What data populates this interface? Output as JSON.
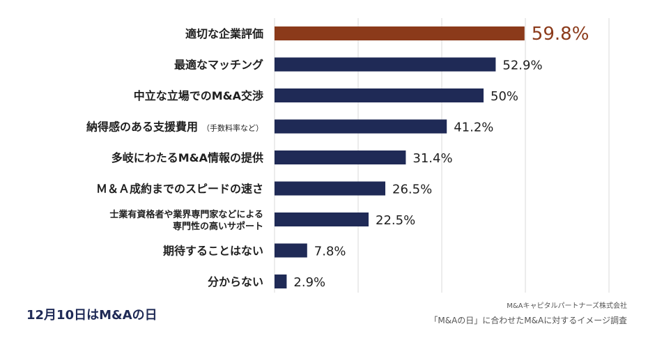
{
  "chart_data": {
    "type": "bar",
    "orientation": "horizontal",
    "categories": [
      [
        "適切な企業評価"
      ],
      [
        "最適なマッチング"
      ],
      [
        "中立な立場でのM&A交渉"
      ],
      [
        "納得感のある支援費用",
        "（手数料率など）"
      ],
      [
        "多岐にわたるM&A情報の提供"
      ],
      [
        "Ｍ＆Ａ成約までのスピードの速さ"
      ],
      [
        "士業有資格者や業界専門家などによる",
        "専門性の高いサポート"
      ],
      [
        "期待することはない"
      ],
      [
        "分からない"
      ]
    ],
    "values": [
      59.8,
      52.9,
      50,
      41.2,
      31.4,
      26.5,
      22.5,
      7.8,
      2.9
    ],
    "value_labels": [
      "59.8%",
      "52.9%",
      "50%",
      "41.2%",
      "31.4%",
      "26.5%",
      "22.5%",
      "7.8%",
      "2.9%"
    ],
    "highlight_index": 0,
    "xlim": [
      0,
      80
    ],
    "grid": true,
    "colors": {
      "bar": "#1f2a56",
      "highlight": "#8b3a1a",
      "highlight_label": "#8b3a1a",
      "grid": "#d9d9d9"
    }
  },
  "footer": {
    "left": "12月10日はM&Aの日",
    "company": "M&Aキャピタルパートナーズ株式会社",
    "note": "「M&Aの日」に合わせたM&Aに対するイメージ調査"
  }
}
